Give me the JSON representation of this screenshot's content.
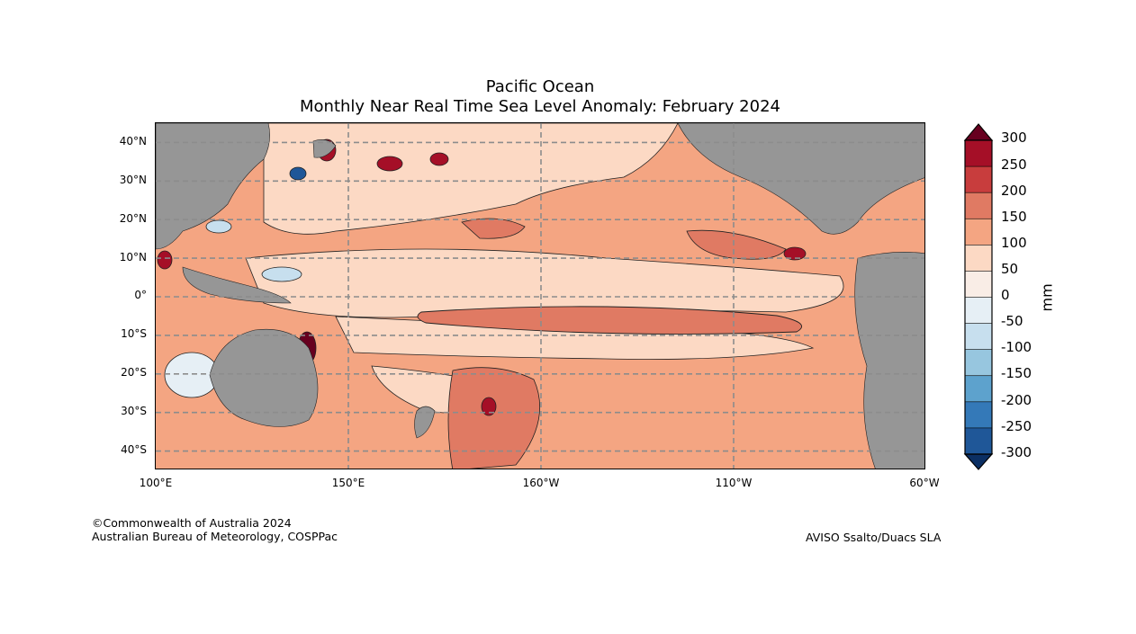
{
  "title": {
    "line1": "Pacific Ocean",
    "line2": "Monthly Near Real Time Sea Level Anomaly: February 2024"
  },
  "map": {
    "lat_labels": [
      "40°N",
      "30°N",
      "20°N",
      "10°N",
      "0°",
      "10°S",
      "20°S",
      "30°S",
      "40°S"
    ],
    "lon_labels": [
      "100°E",
      "150°E",
      "160°W",
      "110°W",
      "60°W"
    ],
    "land_color": "#969696",
    "grid_color": "#8c8c8c"
  },
  "colorbar": {
    "unit": "mm",
    "labels": [
      "300",
      "250",
      "200",
      "150",
      "100",
      "50",
      "0",
      "-50",
      "-100",
      "-150",
      "-200",
      "-250",
      "-300"
    ],
    "colors": [
      "#67001f",
      "#b2182b",
      "#d6604d",
      "#f4a582",
      "#fddbc7",
      "#f7f7f7",
      "#d1e5f0",
      "#92c5de",
      "#4393c3",
      "#2166ac",
      "#053061"
    ],
    "bands": [
      "#a50f27",
      "#c83d3d",
      "#e07a63",
      "#f4a582",
      "#fcd9c4",
      "#f9ede6",
      "#e6eff5",
      "#c7dfee",
      "#97c6df",
      "#5da2cd",
      "#3479b8",
      "#1f5798"
    ],
    "top_cap": "#67001f",
    "bottom_cap": "#0b2f63"
  },
  "credits": {
    "line1": "©Commonwealth of Australia 2024",
    "line2": "Australian Bureau of Meteorology, COSPPac",
    "source": "AVISO Ssalto/Duacs SLA"
  }
}
